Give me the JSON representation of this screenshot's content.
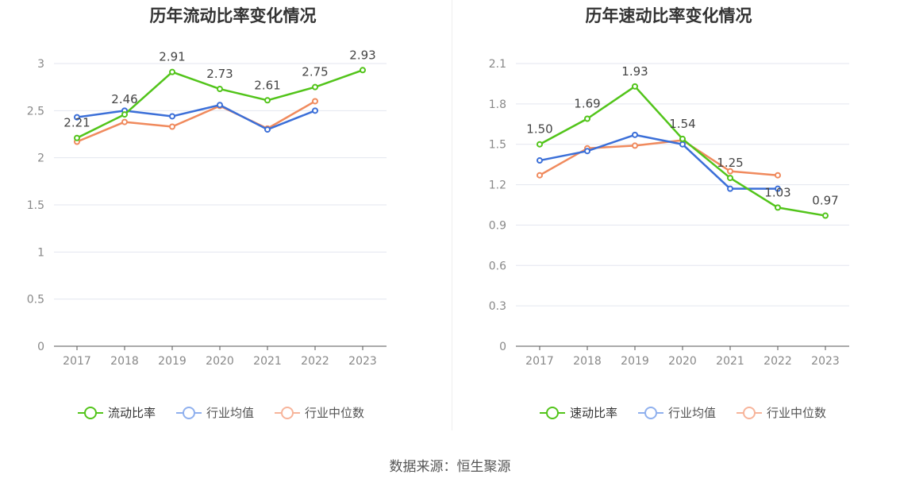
{
  "chart_data": [
    {
      "type": "line",
      "title": "历年流动比率变化情况",
      "categories": [
        "2017",
        "2018",
        "2019",
        "2020",
        "2021",
        "2022",
        "2023"
      ],
      "ylim": [
        0,
        3
      ],
      "yticks": [
        0,
        0.5,
        1,
        1.5,
        2,
        2.5,
        3
      ],
      "grid": true,
      "legend_position": "bottom",
      "series": [
        {
          "name": "流动比率",
          "color": "#52c41a",
          "labeled": true,
          "values": [
            2.21,
            2.46,
            2.91,
            2.73,
            2.61,
            2.75,
            2.93
          ]
        },
        {
          "name": "行业均值",
          "color": "#3b6fd8",
          "labeled": false,
          "values": [
            2.43,
            2.5,
            2.44,
            2.56,
            2.3,
            2.5,
            null
          ]
        },
        {
          "name": "行业中位数",
          "color": "#f08a5d",
          "labeled": false,
          "values": [
            2.17,
            2.38,
            2.33,
            2.55,
            2.31,
            2.6,
            null
          ]
        }
      ]
    },
    {
      "type": "line",
      "title": "历年速动比率变化情况",
      "categories": [
        "2017",
        "2018",
        "2019",
        "2020",
        "2021",
        "2022",
        "2023"
      ],
      "ylim": [
        0,
        2.1
      ],
      "yticks": [
        0,
        0.3,
        0.6,
        0.9,
        1.2,
        1.5,
        1.8,
        2.1
      ],
      "grid": true,
      "legend_position": "bottom",
      "series": [
        {
          "name": "速动比率",
          "color": "#52c41a",
          "labeled": true,
          "values": [
            1.5,
            1.69,
            1.93,
            1.54,
            1.25,
            1.03,
            0.97
          ]
        },
        {
          "name": "行业均值",
          "color": "#3b6fd8",
          "labeled": false,
          "values": [
            1.38,
            1.45,
            1.57,
            1.5,
            1.17,
            1.17,
            null
          ]
        },
        {
          "name": "行业中位数",
          "color": "#f08a5d",
          "labeled": false,
          "values": [
            1.27,
            1.47,
            1.49,
            1.53,
            1.3,
            1.27,
            null
          ]
        }
      ]
    }
  ],
  "legend_colors": [
    "#52c41a",
    "#8fb0ee",
    "#f7b49a"
  ],
  "source": "数据来源：恒生聚源"
}
